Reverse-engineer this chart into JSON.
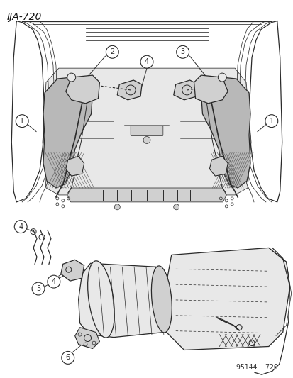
{
  "title": "IJA-720",
  "watermark": "95144  720",
  "bg_color": "#ffffff",
  "fig_width": 4.14,
  "fig_height": 5.33,
  "dpi": 100,
  "line_color": "#2a2a2a",
  "light_gray": "#c8c8c8",
  "med_gray": "#999999",
  "fill_light": "#e8e8e8",
  "fill_med": "#d0d0d0"
}
